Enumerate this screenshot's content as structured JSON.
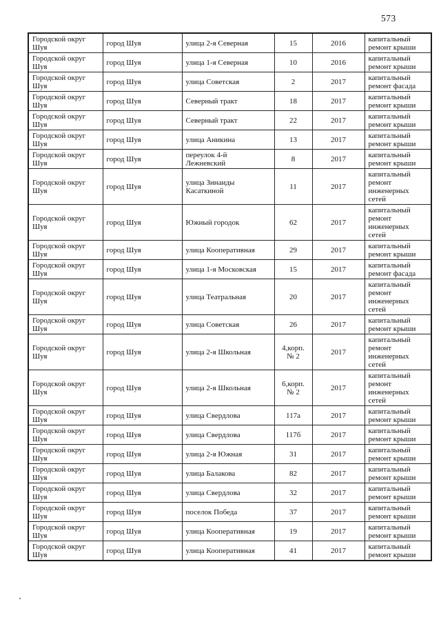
{
  "page": {
    "number": "573"
  },
  "colors": {
    "background": "#ffffff",
    "text": "#161616",
    "border": "#262626"
  },
  "table": {
    "rows": [
      {
        "district": "Городской округ\nШуя",
        "city": "город Шуя",
        "street": "улица 2-я Северная",
        "house": "15",
        "year": "2016",
        "work": "капитальный\nремонт крыши"
      },
      {
        "district": "Городской округ\nШуя",
        "city": "город Шуя",
        "street": "улица 1-я Северная",
        "house": "10",
        "year": "2016",
        "work": "капитальный\nремонт крыши"
      },
      {
        "district": "Городской округ\nШуя",
        "city": "город Шуя",
        "street": "улица Советская",
        "house": "2",
        "year": "2017",
        "work": "капитальный\nремонт фасада"
      },
      {
        "district": "Городской округ\nШуя",
        "city": "город Шуя",
        "street": "Северный тракт",
        "house": "18",
        "year": "2017",
        "work": "капитальный\nремонт крыши"
      },
      {
        "district": "Городской округ\nШуя",
        "city": "город Шуя",
        "street": "Северный тракт",
        "house": "22",
        "year": "2017",
        "work": "капитальный\nремонт крыши"
      },
      {
        "district": "Городской округ\nШуя",
        "city": "город Шуя",
        "street": "улица Аникина",
        "house": "13",
        "year": "2017",
        "work": "капитальный\nремонт крыши"
      },
      {
        "district": "Городской округ\nШуя",
        "city": "город Шуя",
        "street": "переулок 4-й\nЛежневский",
        "house": "8",
        "year": "2017",
        "work": "капитальный\nремонт крыши"
      },
      {
        "district": "Городской округ\nШуя",
        "city": "город Шуя",
        "street": "улица Зинаиды\nКасаткиной",
        "house": "11",
        "year": "2017",
        "work": "капитальный\nремонт\nинженерных\nсетей"
      },
      {
        "district": "Городской округ\nШуя",
        "city": "город Шуя",
        "street": "Южный городок",
        "house": "62",
        "year": "2017",
        "work": "капитальный\nремонт\nинженерных\nсетей"
      },
      {
        "district": "Городской округ\nШуя",
        "city": "город Шуя",
        "street": "улица Кооперативная",
        "house": "29",
        "year": "2017",
        "work": "капитальный\nремонт крыши"
      },
      {
        "district": "Городской округ\nШуя",
        "city": "город Шуя",
        "street": "улица 1-я Московская",
        "house": "15",
        "year": "2017",
        "work": "капитальный\nремонт фасада"
      },
      {
        "district": "Городской округ\nШуя",
        "city": "город Шуя",
        "street": "улица Театральная",
        "house": "20",
        "year": "2017",
        "work": "капитальный\nремонт\nинженерных\nсетей"
      },
      {
        "district": "Городской округ\nШуя",
        "city": "город Шуя",
        "street": "улица Советская",
        "house": "26",
        "year": "2017",
        "work": "капитальный\nремонт крыши"
      },
      {
        "district": "Городской округ\nШуя",
        "city": "город Шуя",
        "street": "улица 2-я Школьная",
        "house": "4,корп.\n№ 2",
        "year": "2017",
        "work": "капитальный\nремонт\nинженерных\nсетей"
      },
      {
        "district": "Городской округ\nШуя",
        "city": "город Шуя",
        "street": "улица 2-я Школьная",
        "house": "6,корп.\n№ 2",
        "year": "2017",
        "work": "капитальный\nремонт\nинженерных\nсетей"
      },
      {
        "district": "Городской округ\nШуя",
        "city": "город Шуя",
        "street": "улица Свердлова",
        "house": "117а",
        "year": "2017",
        "work": "капитальный\nремонт крыши"
      },
      {
        "district": "Городской округ\nШуя",
        "city": "город Шуя",
        "street": "улица Свердлова",
        "house": "117б",
        "year": "2017",
        "work": "капитальный\nремонт крыши"
      },
      {
        "district": "Городской округ\nШуя",
        "city": "город Шуя",
        "street": "улица 2-я Южная",
        "house": "31",
        "year": "2017",
        "work": "капитальный\nремонт крыши"
      },
      {
        "district": "Городской округ\nШуя",
        "city": "город Шуя",
        "street": "улица Балакова",
        "house": "82",
        "year": "2017",
        "work": "капитальный\nремонт крыши"
      },
      {
        "district": "Городской округ\nШуя",
        "city": "город Шуя",
        "street": "улица Свердлова",
        "house": "32",
        "year": "2017",
        "work": "капитальный\nремонт крыши"
      },
      {
        "district": "Городской округ\nШуя",
        "city": "город Шуя",
        "street": "поселок Победа",
        "house": "37",
        "year": "2017",
        "work": "капитальный\nремонт крыши"
      },
      {
        "district": "Городской округ\nШуя",
        "city": "город Шуя",
        "street": "улица Кооперативная",
        "house": "19",
        "year": "2017",
        "work": "капитальный\nремонт крыши"
      },
      {
        "district": "Городской округ\nШуя",
        "city": "город Шуя",
        "street": "улица Кооперативная",
        "house": "41",
        "year": "2017",
        "work": "капитальный\nремонт крыши"
      }
    ]
  }
}
